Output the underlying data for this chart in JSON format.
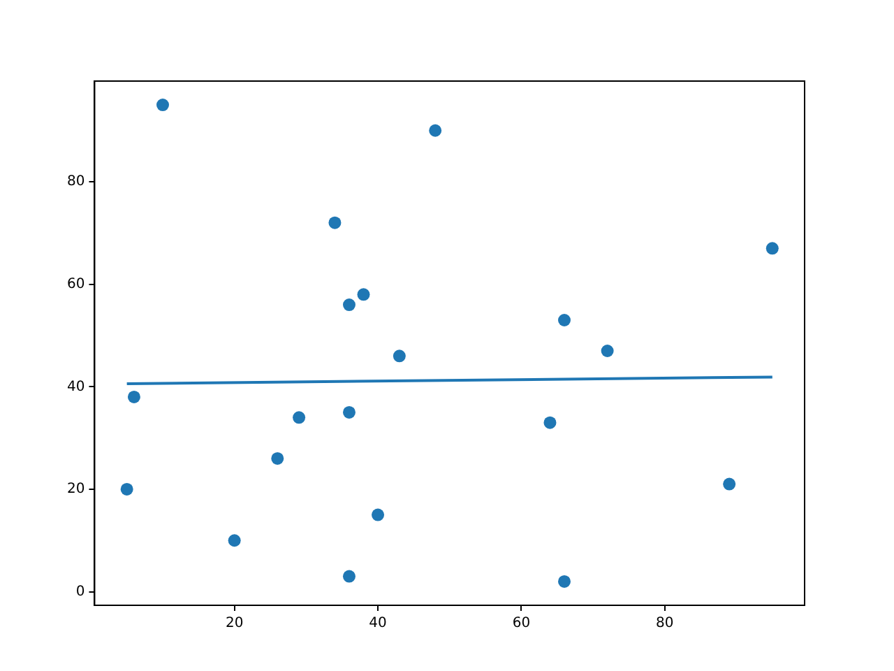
{
  "chart_data": {
    "type": "scatter",
    "xlim": [
      0.5,
      99.5
    ],
    "ylim": [
      -2.65,
      99.65
    ],
    "xticks": [
      20,
      40,
      60,
      80
    ],
    "yticks": [
      0,
      20,
      40,
      60,
      80
    ],
    "marker": "circle",
    "series": [
      {
        "color": "#1f77b4",
        "x": [
          10,
          48,
          34,
          36,
          38,
          43,
          66,
          72,
          95,
          6,
          5,
          26,
          29,
          36,
          64,
          20,
          40,
          36,
          66,
          89
        ],
        "values": [
          95,
          90,
          72,
          56,
          58,
          46,
          53,
          47,
          67,
          38,
          20,
          26,
          34,
          35,
          33,
          10,
          15,
          3,
          2,
          21
        ]
      },
      {
        "type": "line",
        "color": "#1f77b4",
        "marker": "none",
        "x": [
          5,
          95
        ],
        "values": [
          40.6,
          41.9
        ]
      }
    ]
  }
}
